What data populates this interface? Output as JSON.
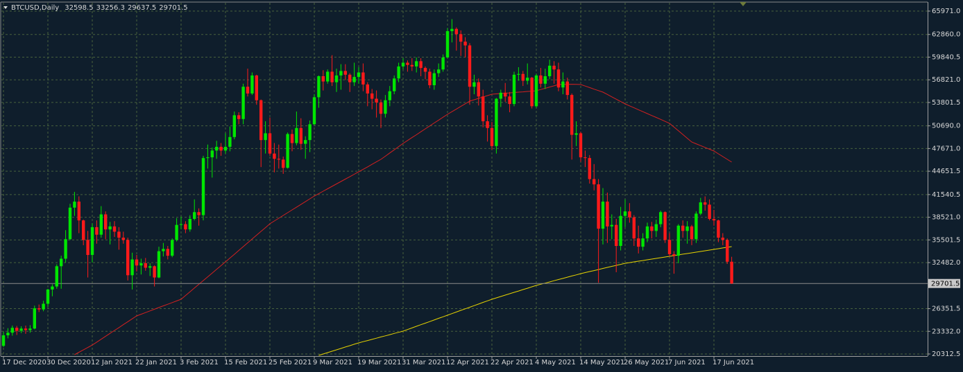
{
  "chart_data": {
    "type": "candlestick",
    "title": "BTCUSD,Daily",
    "categories": [
      "17 Dec 2020",
      null,
      null,
      null,
      null,
      null,
      null,
      null,
      null,
      null,
      "30 Dec 2020",
      null,
      null,
      null,
      null,
      null,
      null,
      null,
      null,
      null,
      "12 Jan 2021",
      null,
      null,
      null,
      null,
      null,
      null,
      null,
      null,
      null,
      "22 Jan 2021",
      null,
      null,
      null,
      null,
      null,
      null,
      null,
      null,
      null,
      "3 Feb 2021",
      null,
      null,
      null,
      null,
      null,
      null,
      null,
      null,
      null,
      "15 Feb 2021",
      null,
      null,
      null,
      null,
      null,
      null,
      null,
      null,
      null,
      "25 Feb 2021",
      null,
      null,
      null,
      null,
      null,
      null,
      null,
      null,
      null,
      "9 Mar 2021",
      null,
      null,
      null,
      null,
      null,
      null,
      null,
      null,
      null,
      "19 Mar 2021",
      null,
      null,
      null,
      null,
      null,
      null,
      null,
      null,
      null,
      "31 Mar 2021",
      null,
      null,
      null,
      null,
      null,
      null,
      null,
      null,
      null,
      "12 Apr 2021",
      null,
      null,
      null,
      null,
      null,
      null,
      null,
      null,
      null,
      "22 Apr 2021",
      null,
      null,
      null,
      null,
      null,
      null,
      null,
      null,
      null,
      "4 May 2021",
      null,
      null,
      null,
      null,
      null,
      null,
      null,
      null,
      null,
      "14 May 2021",
      null,
      null,
      null,
      null,
      null,
      null,
      null,
      null,
      null,
      "26 May 2021",
      null,
      null,
      null,
      null,
      null,
      null,
      null,
      null,
      null,
      "7 Jun 2021",
      null,
      null,
      null,
      null,
      null,
      null,
      null,
      null,
      null,
      "17 Jun 2021",
      null,
      null,
      null,
      null
    ],
    "open": [
      21400,
      22800,
      23150,
      23800,
      23400,
      23700,
      23500,
      23700,
      26400,
      26250,
      27000,
      28900,
      29300,
      32000,
      33000,
      35600,
      39800,
      40600,
      38100,
      35500,
      33500,
      37200,
      36200,
      38900,
      36900,
      37300,
      36600,
      35800,
      35500,
      30800,
      32900,
      32100,
      32400,
      31800,
      32000,
      30500,
      34000,
      34300,
      33400,
      35500,
      37500,
      37600,
      36900,
      38300,
      39200,
      38800,
      46400,
      46500,
      47400,
      47900,
      47400,
      47900,
      49200,
      52100,
      51600,
      55900,
      55000,
      57400,
      54100,
      48800,
      49700,
      47000,
      46300,
      46200,
      45100,
      49600,
      48400,
      50400,
      48300,
      48800,
      50900,
      54500,
      57300,
      56600,
      57900,
      56500,
      57400,
      58000,
      57500,
      56500,
      57200,
      57800,
      56200,
      55000,
      54300,
      53800,
      52300,
      54100,
      55300,
      57000,
      58600,
      59100,
      58800,
      58600,
      59300,
      58400,
      57900,
      56100,
      57700,
      58200,
      59800,
      63300,
      63600,
      62900,
      61900,
      61400,
      55900,
      56500,
      54600,
      51300,
      50400,
      48000,
      54300,
      55100,
      54600,
      53600,
      57500,
      57600,
      56700,
      57100,
      53300,
      57400,
      56300,
      57300,
      58700,
      58200,
      55800,
      56600,
      54800,
      49500,
      49700,
      46500,
      46400,
      43600,
      42900,
      37000,
      40600,
      37300,
      37500,
      34700,
      38700,
      39300,
      38500,
      35700,
      34600,
      35700,
      37300,
      36700,
      37600,
      39200,
      35500,
      33600,
      33400,
      37400,
      36700,
      37300,
      35600,
      39000,
      40500,
      40200,
      38300,
      38100,
      35800,
      35500,
      32598.5
    ],
    "high": [
      23250,
      23750,
      24100,
      24050,
      24000,
      24100,
      24150,
      26750,
      26900,
      27400,
      29000,
      29600,
      32250,
      33400,
      36800,
      40300,
      41900,
      41300,
      38200,
      36700,
      37700,
      38100,
      40000,
      39300,
      37900,
      38000,
      37200,
      36600,
      35800,
      33800,
      33500,
      33000,
      33100,
      32400,
      32100,
      34600,
      35100,
      34700,
      35700,
      38400,
      38600,
      38000,
      38800,
      40900,
      39700,
      46700,
      48200,
      47800,
      48700,
      48400,
      49700,
      50600,
      52600,
      52500,
      56300,
      58300,
      57800,
      57500,
      54200,
      51300,
      51800,
      48400,
      48200,
      46600,
      49800,
      50200,
      52600,
      51700,
      49300,
      51400,
      54900,
      57400,
      58100,
      58200,
      60100,
      58300,
      58900,
      58900,
      57700,
      59100,
      58500,
      59000,
      56500,
      55600,
      55400,
      54200,
      54800,
      56000,
      57400,
      59100,
      59700,
      59400,
      59700,
      59800,
      59700,
      58600,
      58300,
      58200,
      59000,
      60200,
      63700,
      64900,
      63800,
      63400,
      62500,
      61700,
      57500,
      57000,
      55500,
      52100,
      51200,
      54400,
      55500,
      56400,
      55200,
      57900,
      58500,
      58000,
      59000,
      57200,
      57600,
      58400,
      58300,
      59500,
      59300,
      59100,
      57800,
      57100,
      55000,
      51300,
      49900,
      47400,
      46800,
      45600,
      43600,
      42400,
      41800,
      38900,
      38300,
      39900,
      40900,
      40400,
      38800,
      37400,
      36400,
      37800,
      37900,
      38200,
      39400,
      39300,
      36400,
      34000,
      37600,
      38100,
      38000,
      37500,
      39300,
      41100,
      41300,
      40900,
      39500,
      38200,
      36400,
      35700,
      33256.3
    ],
    "low": [
      21250,
      22400,
      22750,
      22850,
      23100,
      23000,
      23150,
      23600,
      25900,
      26000,
      26600,
      28000,
      29000,
      29000,
      32500,
      35500,
      38700,
      36400,
      34800,
      30500,
      32500,
      35000,
      35800,
      35600,
      34900,
      35900,
      34200,
      35000,
      30100,
      28900,
      31300,
      30900,
      31400,
      30700,
      29300,
      30400,
      33300,
      32900,
      33200,
      35300,
      36900,
      36400,
      36600,
      38100,
      37400,
      38100,
      45000,
      43800,
      46300,
      46700,
      47000,
      47300,
      48900,
      50900,
      50900,
      54600,
      54800,
      53500,
      45200,
      47000,
      46700,
      44500,
      45000,
      44300,
      45000,
      47300,
      48100,
      47500,
      46300,
      47200,
      50800,
      53100,
      55400,
      56300,
      56000,
      55200,
      55500,
      56800,
      55200,
      56000,
      56300,
      55300,
      53300,
      52900,
      51800,
      50400,
      51800,
      53300,
      54900,
      56500,
      58200,
      57900,
      58000,
      57800,
      57300,
      56900,
      55700,
      55500,
      57200,
      57900,
      59700,
      61800,
      60700,
      60000,
      59800,
      53500,
      54900,
      53400,
      50500,
      48600,
      47500,
      47000,
      53200,
      53900,
      52500,
      53300,
      56700,
      56000,
      56200,
      53000,
      53100,
      55800,
      55600,
      56900,
      56300,
      55300,
      54900,
      54200,
      46200,
      48000,
      45900,
      45200,
      43000,
      42100,
      29800,
      34900,
      35100,
      35600,
      31200,
      34100,
      37200,
      37800,
      34700,
      33700,
      34100,
      35200,
      35700,
      35900,
      37200,
      35100,
      33300,
      31000,
      32400,
      35800,
      35000,
      34800,
      35100,
      38800,
      39400,
      38100,
      37400,
      35200,
      34800,
      32300,
      29637.5
    ],
    "close": [
      22800,
      23150,
      23800,
      23400,
      23700,
      23500,
      23700,
      26400,
      26250,
      27000,
      28900,
      29300,
      32000,
      33000,
      35600,
      39800,
      40600,
      38100,
      35500,
      33500,
      37200,
      36200,
      38900,
      36900,
      37300,
      36600,
      35800,
      35500,
      30800,
      32900,
      32100,
      32400,
      31800,
      32000,
      30500,
      34000,
      34300,
      33400,
      35500,
      37500,
      37600,
      36900,
      38300,
      39200,
      38800,
      46400,
      46500,
      47400,
      47900,
      47400,
      47900,
      49200,
      52100,
      51600,
      55900,
      55000,
      57400,
      54100,
      48800,
      49700,
      47000,
      46300,
      46200,
      45100,
      49600,
      48400,
      50400,
      48300,
      48800,
      50900,
      54500,
      57300,
      56600,
      57900,
      56500,
      57400,
      58000,
      57500,
      56500,
      57200,
      57800,
      56200,
      55000,
      54300,
      53800,
      52300,
      54100,
      55300,
      57000,
      58600,
      59100,
      58800,
      58600,
      59300,
      58400,
      57900,
      56100,
      57700,
      58200,
      59800,
      63300,
      63600,
      62900,
      61900,
      61400,
      55900,
      56500,
      54600,
      51300,
      50400,
      48000,
      54300,
      55100,
      54600,
      53600,
      57500,
      57600,
      56700,
      57100,
      53300,
      57400,
      56300,
      57300,
      58700,
      58200,
      55800,
      56600,
      54800,
      49500,
      49700,
      46500,
      46400,
      43600,
      42900,
      37000,
      40600,
      37300,
      37500,
      34700,
      38700,
      39300,
      38500,
      35700,
      34600,
      35700,
      37300,
      36700,
      37600,
      39200,
      35500,
      33600,
      33400,
      37400,
      36700,
      37300,
      35600,
      39000,
      40500,
      40200,
      38300,
      38100,
      35800,
      35500,
      32600,
      29701.5
    ],
    "up_color": "#00e600",
    "down_color": "#ff1a1a",
    "series": [
      {
        "type": "line",
        "color": "#d42020",
        "values": [
          null,
          null,
          null,
          null,
          null,
          null,
          null,
          null,
          null,
          null,
          null,
          null,
          null,
          null,
          null,
          null,
          20220,
          20540,
          20860,
          21180,
          21500,
          21890,
          22280,
          22670,
          23060,
          23450,
          23830,
          24220,
          24610,
          25000,
          25390,
          25610,
          25830,
          26050,
          26270,
          26500,
          26720,
          26940,
          27160,
          27380,
          27600,
          28100,
          28600,
          29100,
          29590,
          30090,
          30590,
          31090,
          31590,
          32080,
          32580,
          33090,
          33590,
          34100,
          34610,
          35120,
          35620,
          36130,
          36640,
          37140,
          37650,
          38020,
          38390,
          38760,
          39130,
          39500,
          39860,
          40230,
          40600,
          40970,
          41340,
          41660,
          41990,
          42310,
          42630,
          42960,
          43280,
          43600,
          43920,
          44250,
          44570,
          44900,
          45230,
          45570,
          45900,
          46230,
          46650,
          47080,
          47500,
          47930,
          48350,
          48740,
          49130,
          49510,
          49900,
          50290,
          50680,
          51070,
          51450,
          51840,
          52230,
          52580,
          52930,
          53280,
          53630,
          53980,
          54160,
          54350,
          54530,
          54720,
          54900,
          54950,
          54990,
          55040,
          55080,
          55130,
          55180,
          55220,
          55270,
          55310,
          55360,
          55530,
          55690,
          55860,
          56020,
          56190,
          56200,
          56220,
          56230,
          56210,
          56190,
          55990,
          55790,
          55580,
          55380,
          55180,
          54870,
          54550,
          54240,
          53920,
          53610,
          53350,
          53090,
          52840,
          52580,
          52320,
          52060,
          51810,
          51550,
          51290,
          51030,
          50530,
          50040,
          49540,
          49040,
          48540,
          48300,
          48060,
          47820,
          47580,
          47340,
          46970,
          46600,
          46230,
          45860
        ]
      },
      {
        "type": "line",
        "color": "#e8d400",
        "values": [
          null,
          null,
          null,
          null,
          null,
          null,
          null,
          null,
          null,
          null,
          null,
          null,
          null,
          null,
          null,
          null,
          null,
          null,
          null,
          null,
          null,
          null,
          null,
          null,
          null,
          null,
          null,
          null,
          null,
          null,
          null,
          null,
          null,
          null,
          null,
          null,
          null,
          null,
          null,
          null,
          null,
          null,
          null,
          null,
          null,
          null,
          null,
          null,
          null,
          null,
          null,
          null,
          null,
          null,
          null,
          null,
          null,
          null,
          null,
          null,
          null,
          null,
          null,
          null,
          null,
          null,
          null,
          null,
          null,
          null,
          null,
          20130,
          20310,
          20500,
          20680,
          20870,
          21050,
          21240,
          21420,
          21610,
          21790,
          21950,
          22100,
          22260,
          22420,
          22580,
          22730,
          22890,
          23050,
          23200,
          23360,
          23570,
          23780,
          24000,
          24210,
          24420,
          24630,
          24840,
          25060,
          25270,
          25480,
          25690,
          25900,
          26120,
          26330,
          26540,
          26750,
          26960,
          27180,
          27390,
          27600,
          27780,
          27970,
          28150,
          28340,
          28520,
          28700,
          28890,
          29070,
          29260,
          29440,
          29600,
          29750,
          29910,
          30070,
          30230,
          30380,
          30540,
          30700,
          30850,
          31010,
          31150,
          31290,
          31420,
          31560,
          31700,
          31840,
          31980,
          32110,
          32250,
          32390,
          32480,
          32580,
          32670,
          32760,
          32860,
          32950,
          33040,
          33130,
          33230,
          33320,
          33410,
          33500,
          33600,
          33690,
          33780,
          33870,
          33960,
          34060,
          34150,
          34240,
          34330,
          34430,
          34520,
          34610
        ]
      }
    ],
    "ylim": [
      20036,
      67170
    ],
    "yticks": [
      {
        "value": 65971,
        "label": "65971.0"
      },
      {
        "value": 62860,
        "label": "62860.0"
      },
      59840.5,
      {
        "value": 56821,
        "label": "56821.0"
      },
      53801.5,
      {
        "value": 50690,
        "label": "50690.0"
      },
      {
        "value": 47671,
        "label": "47671.0"
      },
      44651.5,
      41540.5,
      {
        "value": 38521,
        "label": "38521.0"
      },
      35501.5,
      {
        "value": 32482,
        "label": "32482.0"
      },
      26351.5,
      {
        "value": 23332,
        "label": "23332.0"
      },
      20312.5
    ],
    "grid": true
  }
}
